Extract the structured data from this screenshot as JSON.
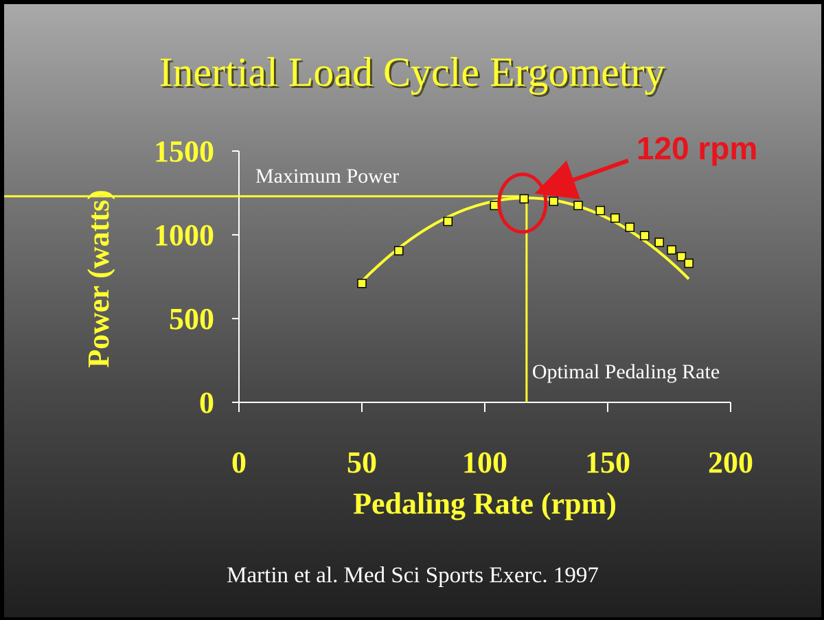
{
  "colors": {
    "accent": "#ffff33",
    "highlight": "#e8141c",
    "note_text": "#ffffff",
    "marker_edge": "#000000"
  },
  "footer": {
    "citation": "Martin et al. Med Sci Sports Exerc. 1997"
  },
  "chart_data": {
    "type": "scatter",
    "title": "Inertial Load Cycle Ergometry",
    "xlabel": "Pedaling Rate (rpm)",
    "ylabel": "Power (watts)",
    "xlim": [
      0,
      200
    ],
    "ylim": [
      0,
      1500
    ],
    "x_ticks": [
      0,
      50,
      100,
      150,
      200
    ],
    "y_ticks": [
      0,
      500,
      1000,
      1500
    ],
    "grid": false,
    "legend": "none",
    "series": [
      {
        "x": [
          50,
          65,
          85,
          104,
          116,
          128,
          138,
          147,
          153,
          159,
          165,
          171,
          176,
          180,
          183
        ],
        "y": [
          710,
          905,
          1080,
          1175,
          1215,
          1200,
          1175,
          1145,
          1100,
          1045,
          995,
          955,
          910,
          870,
          830
        ]
      }
    ],
    "fit_curve": {
      "type": "quadratic",
      "x_range": [
        50,
        183
      ],
      "vertex": [
        117,
        1220
      ],
      "coef_a": -0.111
    },
    "reference_lines": {
      "max_power": {
        "y": 1230,
        "label": "Maximum Power"
      },
      "optimal_rate": {
        "x": 117,
        "label": "Optimal Pedaling Rate"
      }
    },
    "annotation": {
      "text": "120 rpm",
      "target": [
        117,
        1230
      ]
    }
  }
}
